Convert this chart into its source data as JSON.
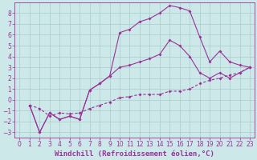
{
  "background_color": "#cce8e8",
  "grid_color": "#aacccc",
  "line_color": "#993399",
  "xlabel": "Windchill (Refroidissement éolien,°C)",
  "xlim": [
    -0.5,
    23.5
  ],
  "ylim": [
    -3.5,
    9.0
  ],
  "xticks": [
    0,
    1,
    2,
    3,
    4,
    5,
    6,
    7,
    8,
    9,
    10,
    11,
    12,
    13,
    14,
    15,
    16,
    17,
    18,
    19,
    20,
    21,
    22,
    23
  ],
  "yticks": [
    -3,
    -2,
    -1,
    0,
    1,
    2,
    3,
    4,
    5,
    6,
    7,
    8
  ],
  "line1_x": [
    1,
    2,
    3,
    4,
    5,
    6,
    7,
    8,
    9,
    10,
    11,
    12,
    13,
    14,
    15,
    16,
    17,
    18,
    19,
    20,
    21,
    22,
    23
  ],
  "line1_y": [
    -0.5,
    -3.0,
    -1.2,
    -1.8,
    -1.5,
    -1.8,
    0.9,
    1.5,
    2.2,
    6.2,
    6.5,
    7.2,
    7.5,
    8.0,
    8.7,
    8.5,
    8.2,
    5.8,
    3.5,
    4.5,
    3.5,
    3.2,
    3.0
  ],
  "line2_x": [
    1,
    2,
    3,
    4,
    5,
    6,
    7,
    8,
    9,
    10,
    11,
    12,
    13,
    14,
    15,
    16,
    17,
    18,
    19,
    20,
    21,
    22,
    23
  ],
  "line2_y": [
    -0.5,
    -3.0,
    -1.2,
    -1.8,
    -1.5,
    -1.8,
    0.9,
    1.5,
    2.2,
    3.0,
    3.2,
    3.5,
    3.8,
    4.2,
    5.5,
    5.0,
    4.0,
    2.5,
    2.0,
    2.5,
    2.0,
    2.5,
    3.0
  ],
  "line3_x": [
    1,
    2,
    3,
    4,
    5,
    6,
    7,
    8,
    9,
    10,
    11,
    12,
    13,
    14,
    15,
    16,
    17,
    18,
    19,
    20,
    21,
    22,
    23
  ],
  "line3_y": [
    -0.5,
    -0.8,
    -1.5,
    -1.2,
    -1.3,
    -1.2,
    -0.8,
    -0.5,
    -0.2,
    0.2,
    0.3,
    0.5,
    0.5,
    0.5,
    0.8,
    0.8,
    1.0,
    1.5,
    1.8,
    2.0,
    2.3,
    2.5,
    3.0
  ],
  "marker": "D",
  "markersize": 2.0,
  "linewidth": 0.8,
  "xlabel_fontsize": 6.5,
  "tick_fontsize": 5.5
}
